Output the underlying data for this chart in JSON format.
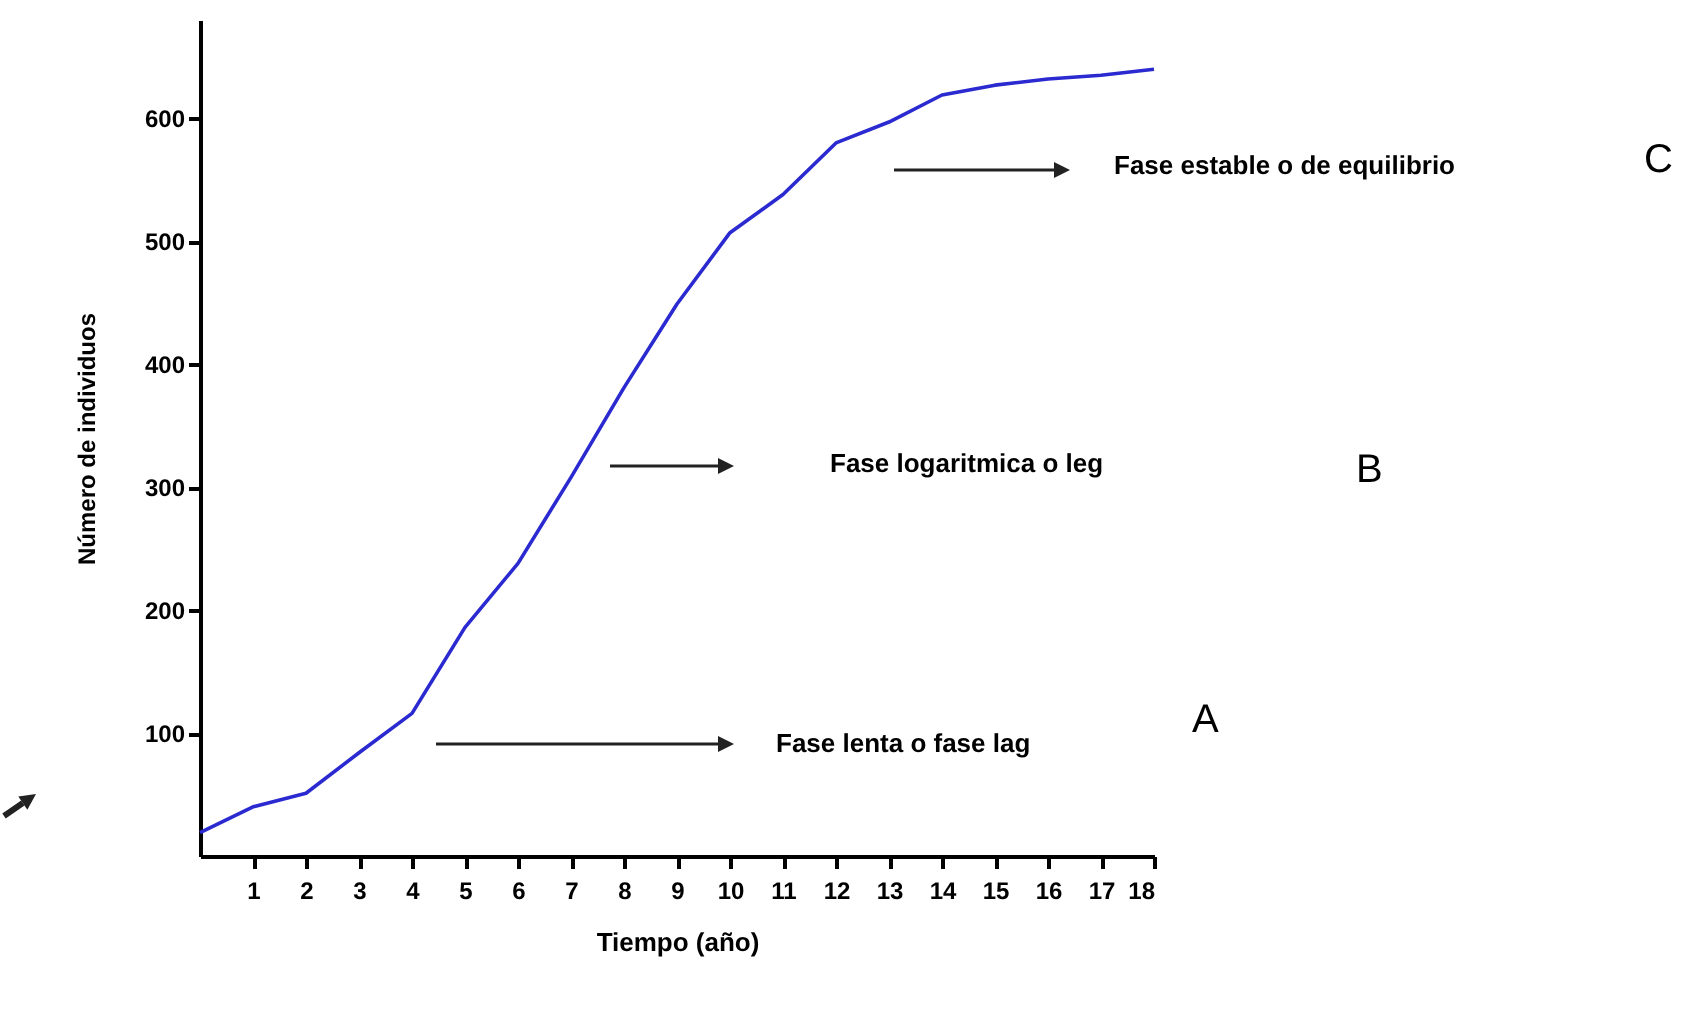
{
  "chart_data": {
    "type": "line",
    "xlabel": "Tiempo (año)",
    "ylabel": "Número de individuos",
    "x": [
      0,
      1,
      2,
      3,
      4,
      5,
      6,
      7,
      8,
      9,
      10,
      11,
      12,
      13,
      14,
      15,
      16,
      17,
      18
    ],
    "series": [
      {
        "color": "#2a2ad0",
        "values": [
          19,
          40,
          51,
          84,
          116,
          186,
          238,
          308,
          381,
          449,
          507,
          538,
          580,
          597,
          619,
          627,
          632,
          635,
          640
        ]
      }
    ],
    "xlim": [
      0,
      18
    ],
    "xticks": [
      1,
      2,
      3,
      4,
      5,
      6,
      7,
      8,
      9,
      10,
      11,
      12,
      13,
      14,
      15,
      16,
      17,
      18
    ],
    "ylim": [
      0,
      680
    ],
    "yticks": [
      100,
      200,
      300,
      400,
      500,
      600
    ],
    "grid": false,
    "marker": "none",
    "line_style": "solid",
    "annotations": [
      "Fase estable o de equilibrio",
      "C",
      "Fase logaritmica o leg",
      "B",
      "Fase lenta o fase lag",
      "A"
    ]
  }
}
